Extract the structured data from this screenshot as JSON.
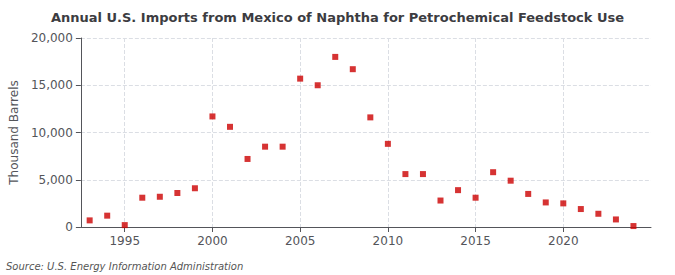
{
  "chart_data": {
    "type": "scatter",
    "title": "Annual U.S. Imports from Mexico of Naphtha for Petrochemical Feedstock Use",
    "ylabel": "Thousand Barrels",
    "annotations": [
      "Source: U.S. Energy Information Administration"
    ],
    "x": [
      1993,
      1994,
      1995,
      1996,
      1997,
      1998,
      1999,
      2000,
      2001,
      2002,
      2003,
      2004,
      2005,
      2006,
      2007,
      2008,
      2009,
      2010,
      2011,
      2012,
      2013,
      2014,
      2015,
      2016,
      2017,
      2018,
      2019,
      2020,
      2021,
      2022,
      2023,
      2024
    ],
    "values": [
      700,
      1200,
      200,
      3100,
      3200,
      3600,
      4100,
      11700,
      10600,
      7200,
      8500,
      8500,
      15700,
      15000,
      18000,
      16700,
      11600,
      8800,
      5600,
      5600,
      2800,
      3900,
      3100,
      5800,
      4900,
      3500,
      2600,
      2500,
      1900,
      1400,
      800,
      100
    ],
    "color": "#cc0000",
    "marker": "square",
    "xlim": [
      1992.5,
      2025
    ],
    "xticks": [
      1995,
      2000,
      2005,
      2010,
      2015,
      2020
    ],
    "ylim": [
      0,
      20000
    ],
    "yticks": [
      0,
      {
        "value": 5000,
        "label": "5,000"
      },
      {
        "value": 10000,
        "label": "10,000"
      },
      {
        "value": 15000,
        "label": "15,000"
      },
      {
        "value": 20000,
        "label": "20,000"
      }
    ],
    "grid": true
  }
}
